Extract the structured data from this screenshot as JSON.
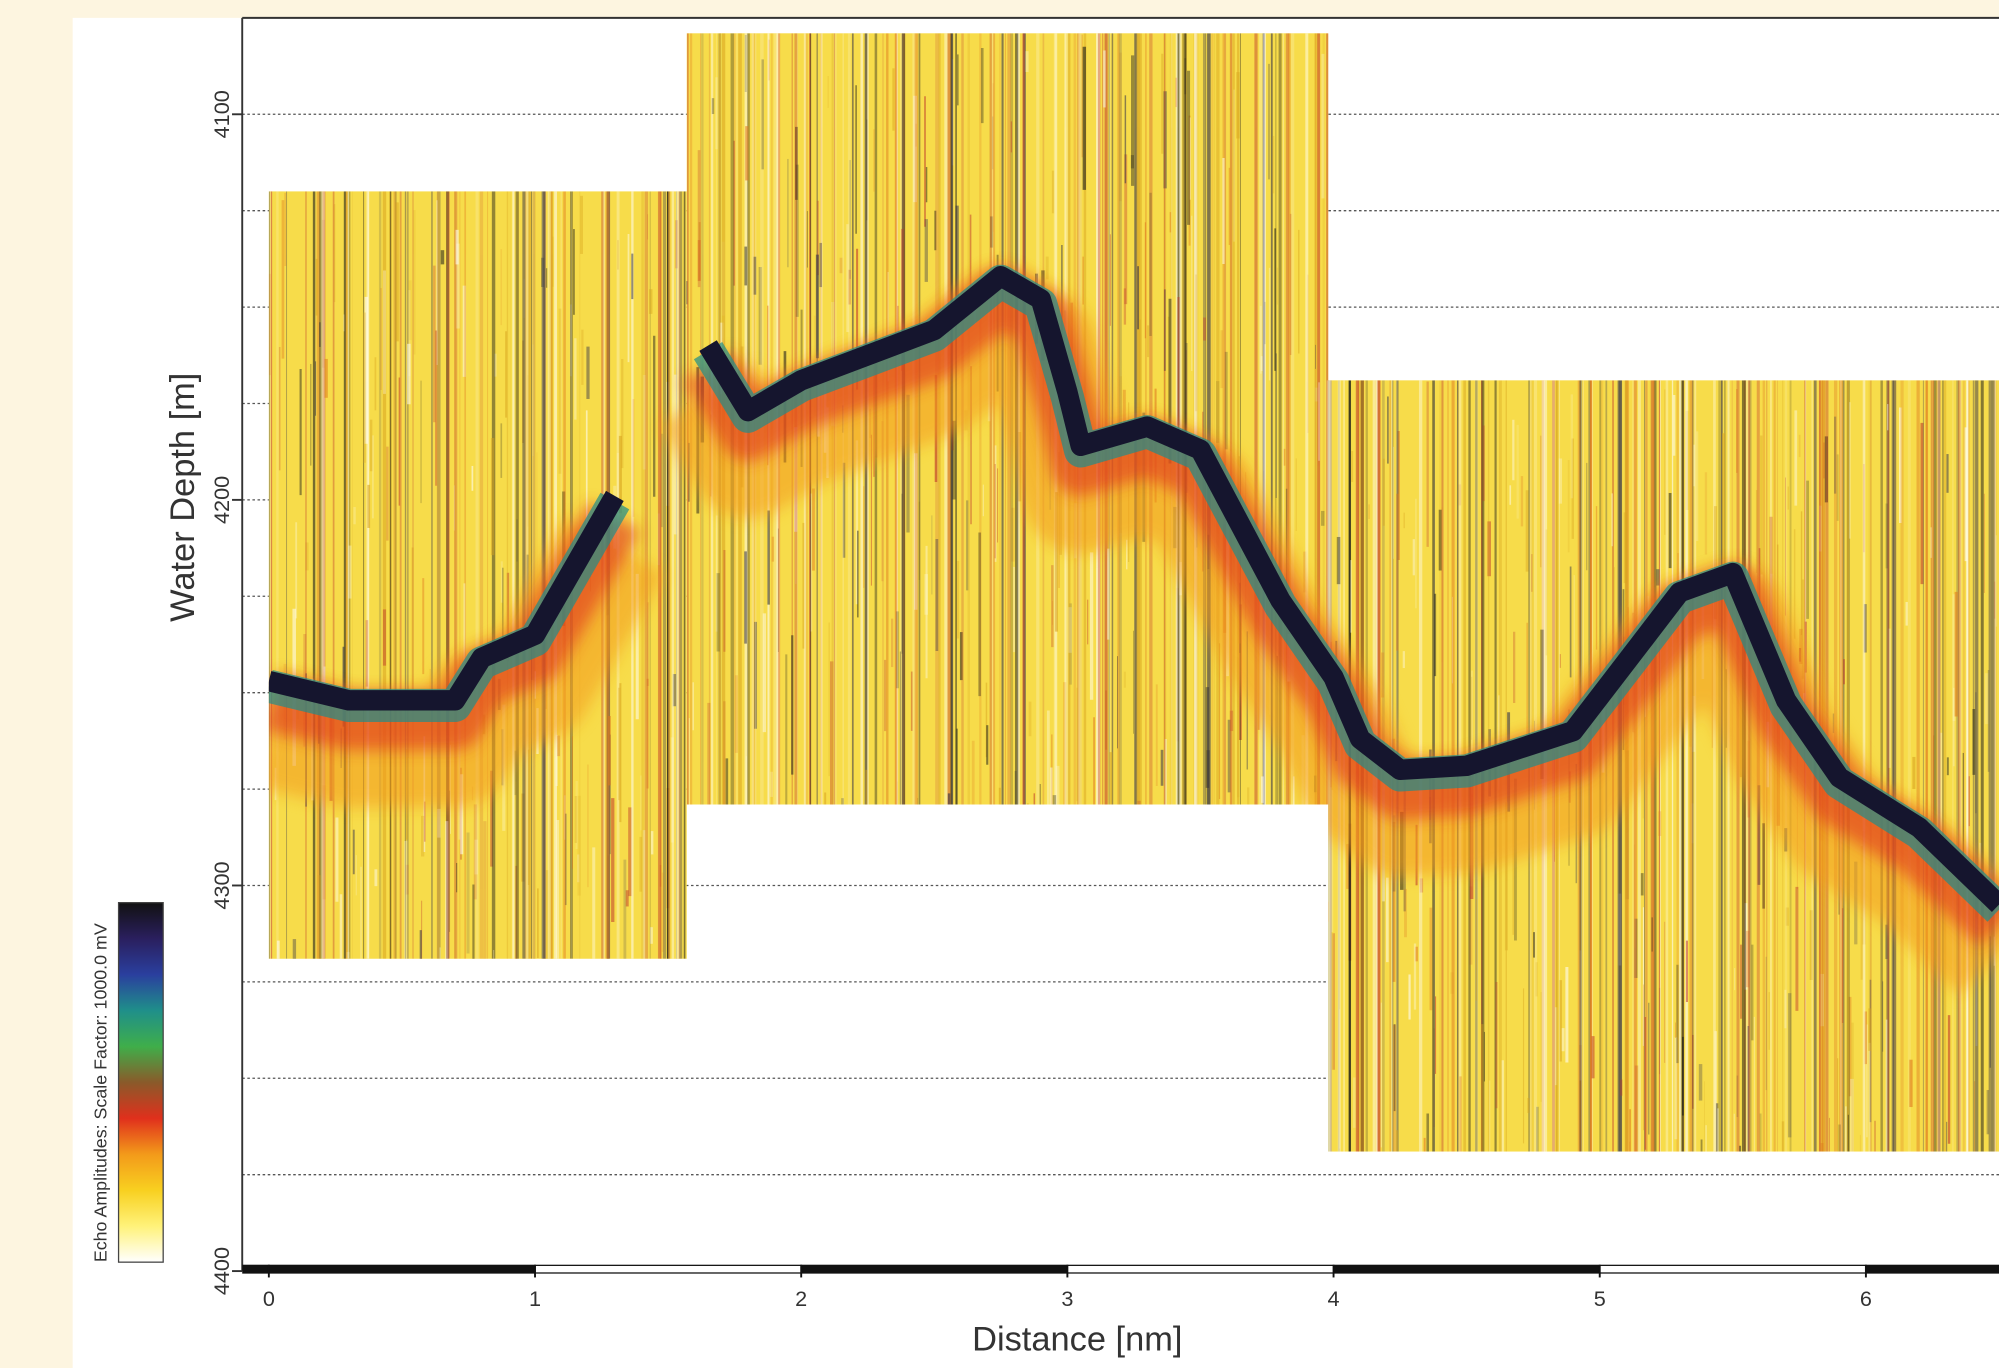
{
  "chart_data": {
    "type": "echogram",
    "x_label": "Distance [nm]",
    "y_label": "Water Depth [m]",
    "colorbar_label": "Echo Amplitudes:  Scale Factor:  1000.0 mV",
    "xlim": [
      -0.1,
      6.5
    ],
    "ylim": [
      4075,
      4400
    ],
    "y_inverted": true,
    "xticks": [
      0,
      1,
      2,
      3,
      4,
      5,
      6
    ],
    "yticks": [
      4100,
      4200,
      4300,
      4400
    ],
    "grid_lines": [
      4100,
      4125,
      4150,
      4175,
      4200,
      4225,
      4250,
      4275,
      4300,
      4325,
      4350,
      4375
    ],
    "panels": [
      {
        "x": [
          0,
          1.57
        ],
        "y": [
          4120,
          4319
        ]
      },
      {
        "x": [
          1.57,
          3.98
        ],
        "y": [
          4079,
          4279
        ]
      },
      {
        "x": [
          3.98,
          6.5
        ],
        "y": [
          4169,
          4369
        ]
      }
    ],
    "x": [
      0,
      0.3,
      0.7,
      0.8,
      1.0,
      1.3,
      1.45,
      1.65,
      1.8,
      2.0,
      2.5,
      2.75,
      2.9,
      3.0,
      3.05,
      3.3,
      3.5,
      3.8,
      4.0,
      4.1,
      4.25,
      4.5,
      4.9,
      5.1,
      5.3,
      5.5,
      5.7,
      5.9,
      6.2,
      6.5
    ],
    "values": [
      4245,
      4250,
      4250,
      4239,
      4233,
      4197,
      null,
      4158,
      4175,
      4167,
      4154,
      4140,
      4146,
      4170,
      4184,
      4179,
      4185,
      4224,
      4244,
      4260,
      4268,
      4267,
      4258,
      4240,
      4222,
      4217,
      4250,
      4270,
      4283,
      4303
    ],
    "color": "#15152e",
    "colormap": [
      "#ffffff",
      "#fff27a",
      "#f8d020",
      "#f39a1a",
      "#e0301c",
      "#8a5a2a",
      "#3fae4a",
      "#1f8f8a",
      "#2a3f9e",
      "#2a1f5e",
      "#111111"
    ]
  }
}
